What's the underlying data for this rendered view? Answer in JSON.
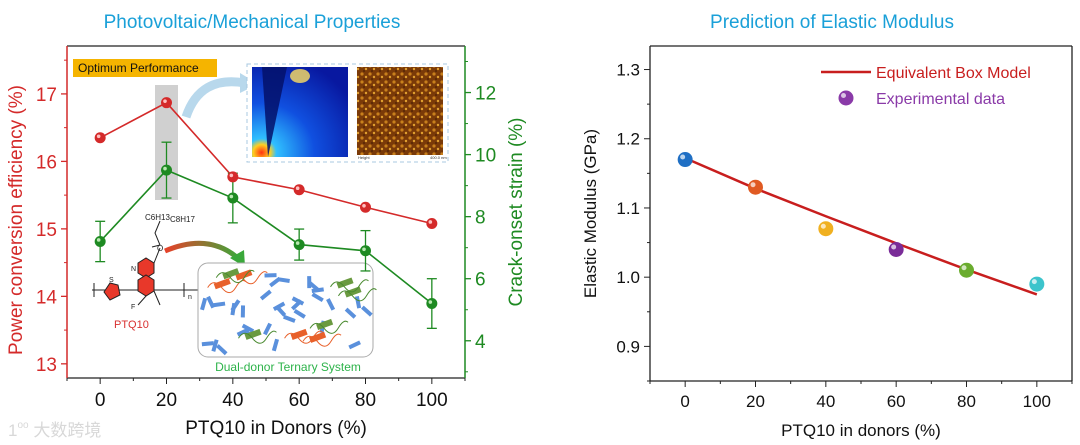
{
  "watermark": "大数跨境",
  "chart_data": [
    {
      "type": "line",
      "title": "Photovoltaic/Mechanical Properties",
      "xlabel": "PTQ10 in Donors (%)",
      "ylabel": "Power conversion efficiency (%)",
      "ylabel_right": "Crack-onset strain (%)",
      "x": [
        0,
        20,
        40,
        60,
        80,
        100
      ],
      "xticks": [
        "0",
        "20",
        "40",
        "60",
        "80",
        "100"
      ],
      "xlim": [
        -10,
        110
      ],
      "ylim": [
        12.79,
        17.71
      ],
      "yticks": [
        "13",
        "14",
        "15",
        "16",
        "17"
      ],
      "ylim_right": [
        2.8,
        13.5
      ],
      "yticks_right": [
        "4",
        "6",
        "8",
        "10",
        "12"
      ],
      "grid": false,
      "series": [
        {
          "name": "Power conversion efficiency",
          "axis": "left",
          "color": "#d42a2a",
          "values": [
            16.35,
            16.87,
            15.77,
            15.58,
            15.32,
            15.08
          ]
        },
        {
          "name": "Crack-onset strain",
          "axis": "right",
          "color": "#1e8a22",
          "values": [
            7.2,
            9.5,
            8.6,
            7.1,
            6.9,
            5.2
          ],
          "errors": [
            0.65,
            0.9,
            0.8,
            0.5,
            0.65,
            0.8
          ]
        }
      ],
      "annotations": {
        "optimum": "Optimum Performance",
        "polymer": "PTQ10",
        "side_chain_a": "C6H13",
        "side_chain_b": "C8H17",
        "atom_s": "S",
        "atom_n": "N",
        "atom_f": "F",
        "atom_o": "O",
        "repeat_n": "n",
        "afm_label_left": "Height",
        "afm_label_right": "400.0 nm",
        "system_label": "Dual-donor Ternary System"
      }
    },
    {
      "type": "scatter",
      "title": "Prediction of Elastic Modulus",
      "xlabel": "PTQ10 in donors (%)",
      "ylabel": "Elastic Modulus (GPa)",
      "x": [
        0,
        20,
        40,
        60,
        80,
        100
      ],
      "xticks": [
        "0",
        "20",
        "40",
        "60",
        "80",
        "100"
      ],
      "xlim": [
        -10,
        110
      ],
      "ylim": [
        0.85,
        1.334
      ],
      "yticks": [
        "0.9",
        "1.0",
        "1.1",
        "1.2",
        "1.3"
      ],
      "grid": false,
      "legend_position": "top-right",
      "series": [
        {
          "name": "Equivalent Box Model",
          "kind": "line",
          "color": "#c81e1e",
          "values": [
            1.172,
            1.128,
            1.088,
            1.049,
            1.011,
            0.975
          ]
        },
        {
          "name": "Experimental data",
          "kind": "points",
          "color": "#8a3aa8",
          "values": [
            1.17,
            1.13,
            1.07,
            1.04,
            1.01,
            0.99
          ],
          "point_colors": [
            "#1f6fc4",
            "#e05a22",
            "#f0b020",
            "#7a2c98",
            "#6aac2e",
            "#3cc4cc"
          ]
        }
      ]
    }
  ]
}
